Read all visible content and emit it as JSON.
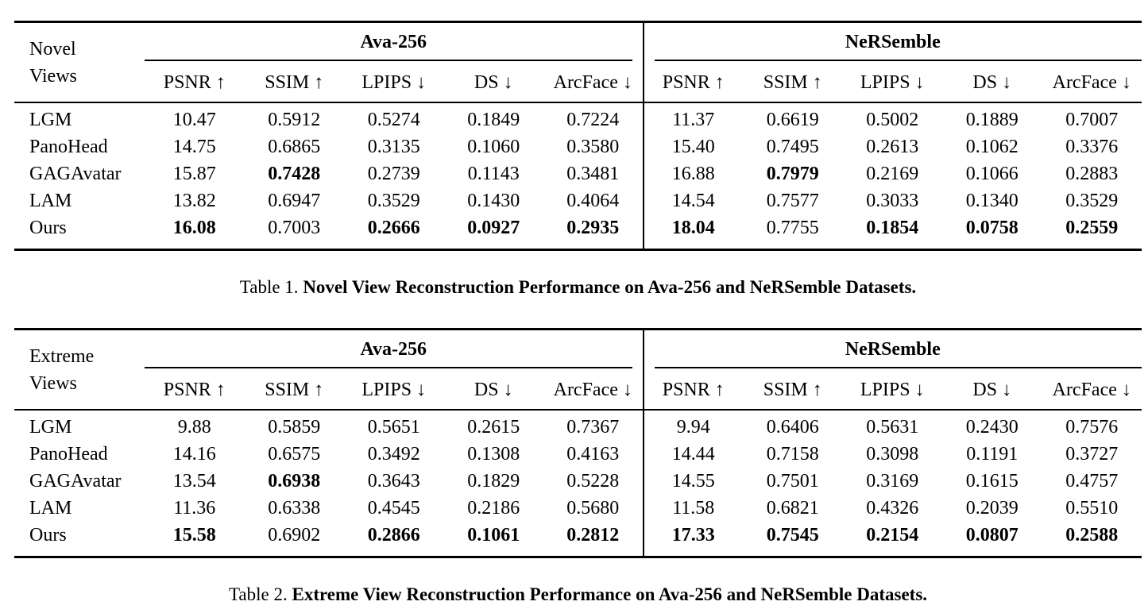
{
  "colors": {
    "background": "#ffffff",
    "text": "#000000",
    "rule": "#000000"
  },
  "tables": [
    {
      "row_label_line1": "Novel",
      "row_label_line2": "Views",
      "column_groups": [
        "Ava-256",
        "NeRSemble"
      ],
      "metrics": [
        "PSNR ↑",
        "SSIM ↑",
        "LPIPS ↓",
        "DS ↓",
        "ArcFace ↓"
      ],
      "rows": [
        {
          "method": "LGM",
          "cells": [
            {
              "v": "10.47",
              "b": false
            },
            {
              "v": "0.5912",
              "b": false
            },
            {
              "v": "0.5274",
              "b": false
            },
            {
              "v": "0.1849",
              "b": false
            },
            {
              "v": "0.7224",
              "b": false
            },
            {
              "v": "11.37",
              "b": false
            },
            {
              "v": "0.6619",
              "b": false
            },
            {
              "v": "0.5002",
              "b": false
            },
            {
              "v": "0.1889",
              "b": false
            },
            {
              "v": "0.7007",
              "b": false
            }
          ]
        },
        {
          "method": "PanoHead",
          "cells": [
            {
              "v": "14.75",
              "b": false
            },
            {
              "v": "0.6865",
              "b": false
            },
            {
              "v": "0.3135",
              "b": false
            },
            {
              "v": "0.1060",
              "b": false
            },
            {
              "v": "0.3580",
              "b": false
            },
            {
              "v": "15.40",
              "b": false
            },
            {
              "v": "0.7495",
              "b": false
            },
            {
              "v": "0.2613",
              "b": false
            },
            {
              "v": "0.1062",
              "b": false
            },
            {
              "v": "0.3376",
              "b": false
            }
          ]
        },
        {
          "method": "GAGAvatar",
          "cells": [
            {
              "v": "15.87",
              "b": false
            },
            {
              "v": "0.7428",
              "b": true
            },
            {
              "v": "0.2739",
              "b": false
            },
            {
              "v": "0.1143",
              "b": false
            },
            {
              "v": "0.3481",
              "b": false
            },
            {
              "v": "16.88",
              "b": false
            },
            {
              "v": "0.7979",
              "b": true
            },
            {
              "v": "0.2169",
              "b": false
            },
            {
              "v": "0.1066",
              "b": false
            },
            {
              "v": "0.2883",
              "b": false
            }
          ]
        },
        {
          "method": "LAM",
          "cells": [
            {
              "v": "13.82",
              "b": false
            },
            {
              "v": "0.6947",
              "b": false
            },
            {
              "v": "0.3529",
              "b": false
            },
            {
              "v": "0.1430",
              "b": false
            },
            {
              "v": "0.4064",
              "b": false
            },
            {
              "v": "14.54",
              "b": false
            },
            {
              "v": "0.7577",
              "b": false
            },
            {
              "v": "0.3033",
              "b": false
            },
            {
              "v": "0.1340",
              "b": false
            },
            {
              "v": "0.3529",
              "b": false
            }
          ]
        },
        {
          "method": "Ours",
          "cells": [
            {
              "v": "16.08",
              "b": true
            },
            {
              "v": "0.7003",
              "b": false
            },
            {
              "v": "0.2666",
              "b": true
            },
            {
              "v": "0.0927",
              "b": true
            },
            {
              "v": "0.2935",
              "b": true
            },
            {
              "v": "18.04",
              "b": true
            },
            {
              "v": "0.7755",
              "b": false
            },
            {
              "v": "0.1854",
              "b": true
            },
            {
              "v": "0.0758",
              "b": true
            },
            {
              "v": "0.2559",
              "b": true
            }
          ]
        }
      ],
      "caption": {
        "prefix": "Table 1.",
        "title": "Novel View Reconstruction Performance on Ava-256 and NeRSemble Datasets."
      }
    },
    {
      "row_label_line1": "Extreme",
      "row_label_line2": "Views",
      "column_groups": [
        "Ava-256",
        "NeRSemble"
      ],
      "metrics": [
        "PSNR ↑",
        "SSIM ↑",
        "LPIPS ↓",
        "DS ↓",
        "ArcFace ↓"
      ],
      "rows": [
        {
          "method": "LGM",
          "cells": [
            {
              "v": "9.88",
              "b": false
            },
            {
              "v": "0.5859",
              "b": false
            },
            {
              "v": "0.5651",
              "b": false
            },
            {
              "v": "0.2615",
              "b": false
            },
            {
              "v": "0.7367",
              "b": false
            },
            {
              "v": "9.94",
              "b": false
            },
            {
              "v": "0.6406",
              "b": false
            },
            {
              "v": "0.5631",
              "b": false
            },
            {
              "v": "0.2430",
              "b": false
            },
            {
              "v": "0.7576",
              "b": false
            }
          ]
        },
        {
          "method": "PanoHead",
          "cells": [
            {
              "v": "14.16",
              "b": false
            },
            {
              "v": "0.6575",
              "b": false
            },
            {
              "v": "0.3492",
              "b": false
            },
            {
              "v": "0.1308",
              "b": false
            },
            {
              "v": "0.4163",
              "b": false
            },
            {
              "v": "14.44",
              "b": false
            },
            {
              "v": "0.7158",
              "b": false
            },
            {
              "v": "0.3098",
              "b": false
            },
            {
              "v": "0.1191",
              "b": false
            },
            {
              "v": "0.3727",
              "b": false
            }
          ]
        },
        {
          "method": "GAGAvatar",
          "cells": [
            {
              "v": "13.54",
              "b": false
            },
            {
              "v": "0.6938",
              "b": true
            },
            {
              "v": "0.3643",
              "b": false
            },
            {
              "v": "0.1829",
              "b": false
            },
            {
              "v": "0.5228",
              "b": false
            },
            {
              "v": "14.55",
              "b": false
            },
            {
              "v": "0.7501",
              "b": false
            },
            {
              "v": "0.3169",
              "b": false
            },
            {
              "v": "0.1615",
              "b": false
            },
            {
              "v": "0.4757",
              "b": false
            }
          ]
        },
        {
          "method": "LAM",
          "cells": [
            {
              "v": "11.36",
              "b": false
            },
            {
              "v": "0.6338",
              "b": false
            },
            {
              "v": "0.4545",
              "b": false
            },
            {
              "v": "0.2186",
              "b": false
            },
            {
              "v": "0.5680",
              "b": false
            },
            {
              "v": "11.58",
              "b": false
            },
            {
              "v": "0.6821",
              "b": false
            },
            {
              "v": "0.4326",
              "b": false
            },
            {
              "v": "0.2039",
              "b": false
            },
            {
              "v": "0.5510",
              "b": false
            }
          ]
        },
        {
          "method": "Ours",
          "cells": [
            {
              "v": "15.58",
              "b": true
            },
            {
              "v": "0.6902",
              "b": false
            },
            {
              "v": "0.2866",
              "b": true
            },
            {
              "v": "0.1061",
              "b": true
            },
            {
              "v": "0.2812",
              "b": true
            },
            {
              "v": "17.33",
              "b": true
            },
            {
              "v": "0.7545",
              "b": true
            },
            {
              "v": "0.2154",
              "b": true
            },
            {
              "v": "0.0807",
              "b": true
            },
            {
              "v": "0.2588",
              "b": true
            }
          ]
        }
      ],
      "caption": {
        "prefix": "Table 2.",
        "title": "Extreme View Reconstruction Performance on Ava-256 and NeRSemble Datasets."
      }
    }
  ]
}
